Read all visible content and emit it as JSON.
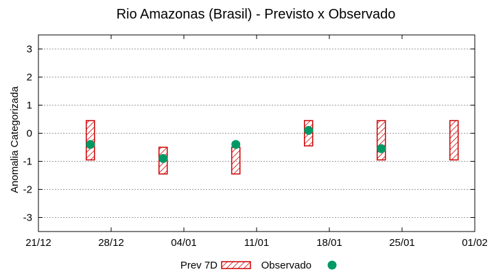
{
  "chart_data": {
    "type": "scatter",
    "title": "Rio Amazonas (Brasil) - Previsto x Observado",
    "xlabel": "",
    "ylabel": "Anomalia Categorizada",
    "ylim": [
      -3.5,
      3.5
    ],
    "yticks": [
      -3,
      -2,
      -1,
      0,
      1,
      2,
      3
    ],
    "yticklabels": [
      "-3",
      "-2",
      "-1",
      "0",
      "1",
      "2",
      "3"
    ],
    "xlim": [
      0,
      42
    ],
    "xticks": [
      0,
      7,
      14,
      21,
      28,
      35,
      42
    ],
    "xticklabels": [
      "21/12",
      "28/12",
      "04/01",
      "11/01",
      "18/01",
      "25/01",
      "01/02"
    ],
    "grid": true,
    "legend_position": "bottom",
    "series": [
      {
        "name": "Prev 7D",
        "kind": "range-box",
        "color": "#cc0000",
        "points": [
          {
            "x": 5,
            "low": -0.95,
            "high": 0.45
          },
          {
            "x": 12,
            "low": -1.45,
            "high": -0.5
          },
          {
            "x": 19,
            "low": -1.45,
            "high": -0.5
          },
          {
            "x": 26,
            "low": -0.45,
            "high": 0.45
          },
          {
            "x": 33,
            "low": -0.95,
            "high": 0.45
          },
          {
            "x": 40,
            "low": -0.95,
            "high": 0.45
          }
        ]
      },
      {
        "name": "Observado",
        "kind": "marker",
        "color": "#009966",
        "points": [
          {
            "x": 5,
            "y": -0.4
          },
          {
            "x": 12,
            "y": -0.9
          },
          {
            "x": 19,
            "y": -0.4
          },
          {
            "x": 26,
            "y": 0.1
          },
          {
            "x": 33,
            "y": -0.55
          }
        ]
      }
    ]
  }
}
